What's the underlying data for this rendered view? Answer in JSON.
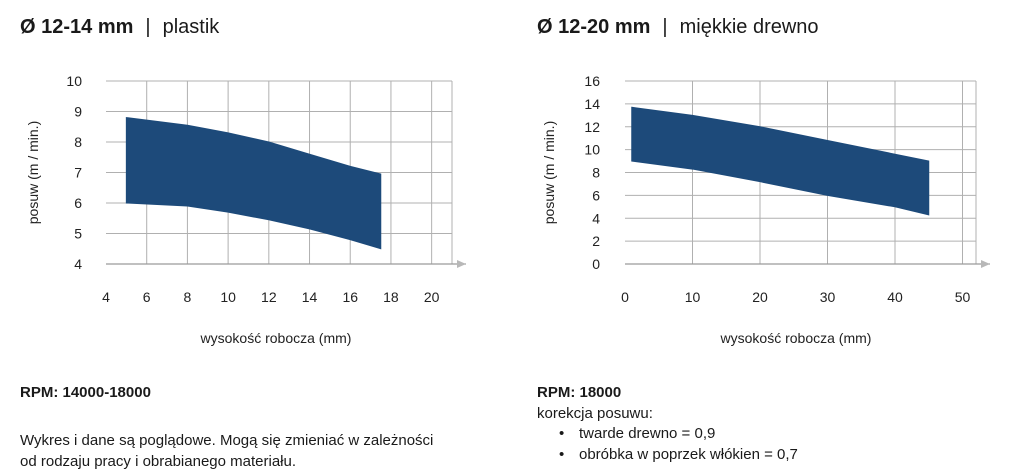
{
  "chart_data": [
    {
      "type": "area",
      "title_main": "Ø 12-14 mm",
      "title_sep": "|",
      "title_sub": "plastik",
      "xlabel": "wysokość robocza (mm)",
      "ylabel": "posuw (m / min.)",
      "xlim": [
        4,
        21
      ],
      "ylim": [
        4,
        10
      ],
      "xticks": [
        4,
        6,
        8,
        10,
        12,
        14,
        16,
        18,
        20
      ],
      "yticks": [
        4,
        5,
        6,
        7,
        8,
        9,
        10
      ],
      "grid": true,
      "band": {
        "x": [
          5,
          8,
          10,
          12,
          14,
          16,
          17.5
        ],
        "upper": [
          8.8,
          8.55,
          8.3,
          8.0,
          7.6,
          7.2,
          6.95
        ],
        "lower": [
          6.0,
          5.9,
          5.7,
          5.45,
          5.15,
          4.8,
          4.5
        ],
        "color": "#1d4a7a"
      },
      "rpm": "RPM: 14000-18000",
      "note_lines": [
        "Wykres i dane są poglądowe. Mogą się zmieniać w zależności",
        "od rodzaju pracy i obrabianego materiału."
      ]
    },
    {
      "type": "area",
      "title_main": "Ø 12-20 mm",
      "title_sep": "|",
      "title_sub": "miękkie drewno",
      "xlabel": "wysokość robocza (mm)",
      "ylabel": "posuw (m / min.)",
      "xlim": [
        0,
        52
      ],
      "ylim": [
        0,
        16
      ],
      "xticks": [
        0,
        10,
        20,
        30,
        40,
        50
      ],
      "yticks": [
        0,
        2,
        4,
        6,
        8,
        10,
        12,
        14,
        16
      ],
      "grid": true,
      "band": {
        "x": [
          1,
          10,
          20,
          30,
          40,
          45
        ],
        "upper": [
          13.7,
          13.0,
          12.0,
          10.8,
          9.6,
          9.0
        ],
        "lower": [
          9.0,
          8.3,
          7.2,
          6.0,
          5.0,
          4.3
        ],
        "color": "#1d4a7a"
      },
      "rpm": "RPM: 18000",
      "correction_title": "korekcja posuwu:",
      "correction_items": [
        "twarde drewno = 0,9",
        "obróbka w poprzek włókien = 0,7"
      ]
    }
  ]
}
